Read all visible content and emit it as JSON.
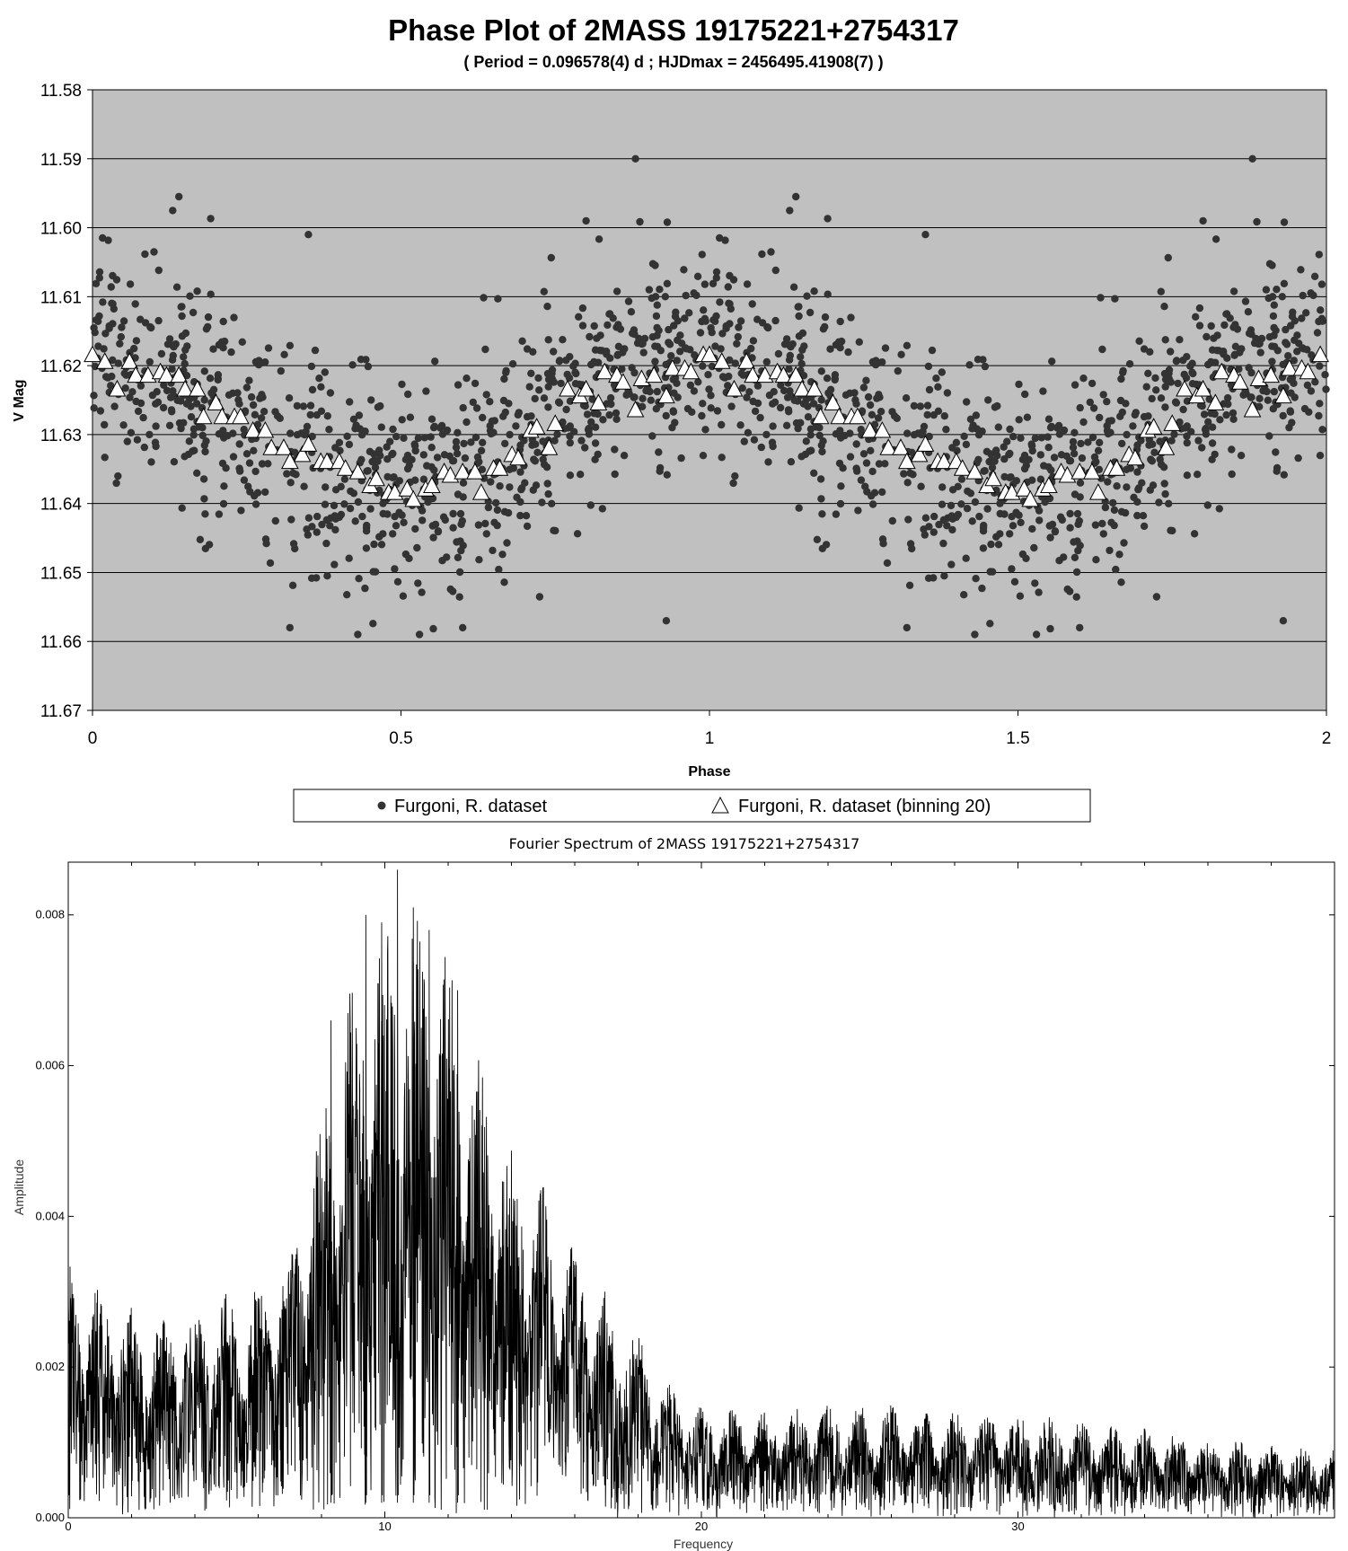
{
  "chart_data": [
    {
      "type": "scatter",
      "title": "Phase Plot of 2MASS 19175221+2754317",
      "subtitle": "( Period = 0.096578(4) d ; HJDmax = 2456495.41908(7)  )",
      "xlabel": "Phase",
      "ylabel": "V Mag",
      "xlim": [
        0,
        2
      ],
      "ylim": [
        11.58,
        11.67
      ],
      "y_inverted": true,
      "x_ticks": [
        "0",
        "0.5",
        "1",
        "1.5",
        "2"
      ],
      "y_ticks": [
        "11.58",
        "11.59",
        "11.60",
        "11.61",
        "11.62",
        "11.63",
        "11.64",
        "11.65",
        "11.66",
        "11.67"
      ],
      "grid": "horizontal",
      "plot_background": "#c0c0c0",
      "legend_position": "bottom",
      "series": [
        {
          "name": "Furgoni, R. dataset",
          "marker": "circle",
          "color": "#333333",
          "mean_curve": {
            "phase": [
              0,
              0.05,
              0.1,
              0.15,
              0.2,
              0.25,
              0.3,
              0.35,
              0.4,
              0.45,
              0.5,
              0.55,
              0.6,
              0.65,
              0.7,
              0.75,
              0.8,
              0.85,
              0.9,
              0.95,
              1.0
            ],
            "vmag": [
              11.619,
              11.62,
              11.621,
              11.623,
              11.626,
              11.629,
              11.632,
              11.634,
              11.636,
              11.638,
              11.6385,
              11.637,
              11.636,
              11.634,
              11.631,
              11.627,
              11.623,
              11.621,
              11.62,
              11.6195,
              11.619
            ]
          },
          "scatter_sigma": 0.009,
          "notable_points": [
            {
              "phase": 0.88,
              "vmag": 11.59
            },
            {
              "phase": 1.88,
              "vmag": 11.59
            },
            {
              "phase": 0.14,
              "vmag": 11.5955
            },
            {
              "phase": 1.14,
              "vmag": 11.5955
            },
            {
              "phase": 0.13,
              "vmag": 11.5975
            },
            {
              "phase": 1.13,
              "vmag": 11.5975
            },
            {
              "phase": 0.8,
              "vmag": 11.599
            },
            {
              "phase": 1.8,
              "vmag": 11.599
            },
            {
              "phase": 0.35,
              "vmag": 11.601
            },
            {
              "phase": 1.35,
              "vmag": 11.601
            },
            {
              "phase": 0.32,
              "vmag": 11.658
            },
            {
              "phase": 1.32,
              "vmag": 11.658
            },
            {
              "phase": 0.43,
              "vmag": 11.659
            },
            {
              "phase": 1.43,
              "vmag": 11.659
            },
            {
              "phase": 0.53,
              "vmag": 11.659
            },
            {
              "phase": 1.53,
              "vmag": 11.659
            },
            {
              "phase": 0.6,
              "vmag": 11.658
            },
            {
              "phase": 1.6,
              "vmag": 11.658
            },
            {
              "phase": 0.93,
              "vmag": 11.657
            },
            {
              "phase": 1.93,
              "vmag": 11.657
            }
          ]
        },
        {
          "name": "Furgoni, R. dataset (binning 20)",
          "marker": "triangle",
          "color": "#ffffff",
          "x": [
            0.0,
            0.02,
            0.04,
            0.06,
            0.07,
            0.09,
            0.11,
            0.12,
            0.14,
            0.15,
            0.17,
            0.18,
            0.2,
            0.21,
            0.23,
            0.24,
            0.26,
            0.28,
            0.29,
            0.31,
            0.32,
            0.34,
            0.35,
            0.37,
            0.38,
            0.4,
            0.41,
            0.43,
            0.45,
            0.46,
            0.48,
            0.49,
            0.51,
            0.52,
            0.54,
            0.55,
            0.57,
            0.58,
            0.6,
            0.62,
            0.63,
            0.65,
            0.66,
            0.68,
            0.69,
            0.71,
            0.72,
            0.74,
            0.75,
            0.77,
            0.79,
            0.8,
            0.82,
            0.83,
            0.85,
            0.86,
            0.88,
            0.89,
            0.91,
            0.93,
            0.94,
            0.96,
            0.97,
            0.99
          ],
          "y": [
            11.6185,
            11.6195,
            11.6235,
            11.6195,
            11.6215,
            11.6215,
            11.621,
            11.6215,
            11.6215,
            11.6235,
            11.6235,
            11.6275,
            11.6255,
            11.6275,
            11.6275,
            11.6275,
            11.6295,
            11.6295,
            11.632,
            11.632,
            11.634,
            11.633,
            11.6315,
            11.634,
            11.634,
            11.634,
            11.635,
            11.6355,
            11.6375,
            11.6365,
            11.6385,
            11.6385,
            11.638,
            11.6395,
            11.638,
            11.6375,
            11.6355,
            11.636,
            11.6355,
            11.6355,
            11.6385,
            11.635,
            11.635,
            11.633,
            11.6335,
            11.6295,
            11.629,
            11.632,
            11.6285,
            11.6235,
            11.6245,
            11.6235,
            11.6255,
            11.621,
            11.6215,
            11.6225,
            11.6265,
            11.622,
            11.6215,
            11.6245,
            11.6205,
            11.6205,
            11.621,
            11.6185
          ]
        }
      ]
    },
    {
      "type": "line",
      "title": "Fourier Spectrum of 2MASS 19175221+2754317",
      "xlabel": "Frequency",
      "ylabel": "Amplitude",
      "xlim": [
        0,
        40
      ],
      "ylim": [
        0,
        0.0087
      ],
      "x_ticks": [
        "0",
        "10",
        "20",
        "30"
      ],
      "y_ticks": [
        "0.000",
        "0.002",
        "0.004",
        "0.006",
        "0.008"
      ],
      "color": "#000000",
      "envelope": {
        "frequency": [
          0,
          1,
          2,
          3,
          4,
          5,
          6,
          7,
          8,
          9,
          10,
          11,
          12,
          13,
          14,
          15,
          16,
          17,
          18,
          19,
          20,
          22,
          24,
          26,
          28,
          30,
          32,
          34,
          36,
          38,
          40
        ],
        "amplitude": [
          0.0034,
          0.0031,
          0.0028,
          0.0027,
          0.0028,
          0.003,
          0.0031,
          0.0036,
          0.0056,
          0.0075,
          0.0082,
          0.0084,
          0.0076,
          0.0062,
          0.0052,
          0.0044,
          0.0036,
          0.003,
          0.0025,
          0.0018,
          0.0015,
          0.0014,
          0.0015,
          0.0015,
          0.0014,
          0.0014,
          0.0013,
          0.0012,
          0.0011,
          0.001,
          0.0009
        ]
      },
      "peaks": [
        {
          "frequency": 10.4,
          "amplitude": 0.0086
        },
        {
          "frequency": 9.4,
          "amplitude": 0.008
        },
        {
          "frequency": 11.4,
          "amplitude": 0.0078
        },
        {
          "frequency": 10.9,
          "amplitude": 0.0081
        },
        {
          "frequency": 9.9,
          "amplitude": 0.0079
        },
        {
          "frequency": 8.3,
          "amplitude": 0.0066
        },
        {
          "frequency": 12.3,
          "amplitude": 0.007
        },
        {
          "frequency": 0.0,
          "amplitude": 0.0034
        }
      ]
    }
  ],
  "legend": {
    "circle_label": "Furgoni, R. dataset",
    "triangle_label": "Furgoni, R. dataset (binning 20)"
  }
}
